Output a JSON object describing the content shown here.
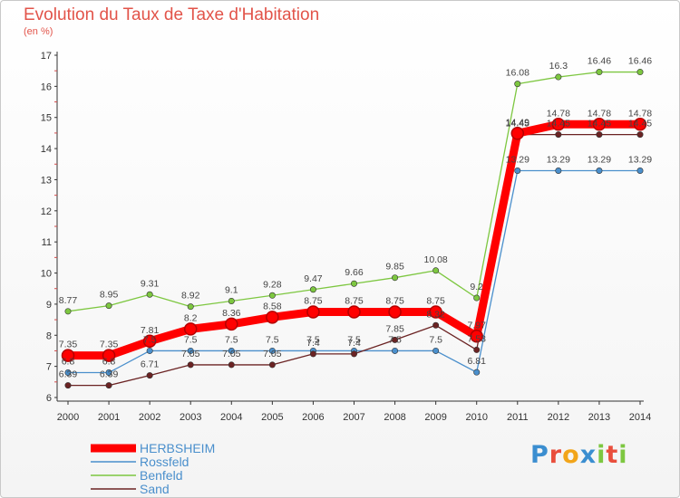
{
  "title": "Evolution du Taux de Taxe d'Habitation",
  "subtitle": "(en %)",
  "logo": "Proxiti",
  "chart_data": {
    "type": "line",
    "title": "Evolution du Taux de Taxe d'Habitation",
    "ylabel": "(en %)",
    "xlabel": "",
    "x": [
      "2000",
      "2001",
      "2002",
      "2003",
      "2004",
      "2005",
      "2006",
      "2007",
      "2008",
      "2009",
      "2010",
      "2011",
      "2012",
      "2013",
      "2014"
    ],
    "ylim": [
      6,
      17
    ],
    "yticks": [
      "6",
      "7",
      "8",
      "9",
      "10",
      "11",
      "12",
      "13",
      "14",
      "15",
      "16",
      "17"
    ],
    "grid": false,
    "legend_position": "bottom-left",
    "series": [
      {
        "name": "HERBSHEIM",
        "color": "#ff0000",
        "values": [
          7.35,
          7.35,
          7.81,
          8.2,
          8.36,
          8.58,
          8.75,
          8.75,
          8.75,
          8.75,
          7.97,
          14.49,
          14.78,
          14.78,
          14.78
        ],
        "labels": [
          "7.35",
          "7.35",
          "7.81",
          "8.2",
          "8.36",
          "8.58",
          "8.75",
          "8.75",
          "8.75",
          "8.75",
          "7.97",
          "14.49",
          "14.78",
          "14.78",
          "14.78"
        ]
      },
      {
        "name": "Rossfeld",
        "color": "#4a8fcc",
        "values": [
          6.8,
          6.8,
          7.5,
          7.5,
          7.5,
          7.5,
          7.5,
          7.5,
          7.5,
          7.5,
          6.81,
          13.29,
          13.29,
          13.29,
          13.29
        ],
        "labels": [
          "6.8",
          "6.8",
          "7.5",
          "7.5",
          "7.5",
          "7.5",
          "7.5",
          "7.5",
          "7.5",
          "7.5",
          "6.81",
          "13.29",
          "13.29",
          "13.29",
          "13.29"
        ]
      },
      {
        "name": "Benfeld",
        "color": "#7dc740",
        "values": [
          8.77,
          8.95,
          9.31,
          8.92,
          9.1,
          9.28,
          9.47,
          9.66,
          9.85,
          10.08,
          9.2,
          16.08,
          16.3,
          16.46,
          16.46
        ],
        "labels": [
          "8.77",
          "8.95",
          "9.31",
          "8.92",
          "9.1",
          "9.28",
          "9.47",
          "9.66",
          "9.85",
          "10.08",
          "9.2",
          "16.08",
          "16.3",
          "16.46",
          "16.46"
        ]
      },
      {
        "name": "Sand",
        "color": "#6b2323",
        "values": [
          6.39,
          6.39,
          6.71,
          7.05,
          7.05,
          7.05,
          7.4,
          7.4,
          7.85,
          8.32,
          7.53,
          14.45,
          14.45,
          14.45,
          14.45
        ],
        "labels": [
          "6.39",
          "6.39",
          "6.71",
          "7.05",
          "7.05",
          "7.05",
          "7.4",
          "7.4",
          "7.85",
          "8.32",
          "7.53",
          "14.45",
          "14.45",
          "14.45",
          "14.45"
        ]
      }
    ]
  }
}
